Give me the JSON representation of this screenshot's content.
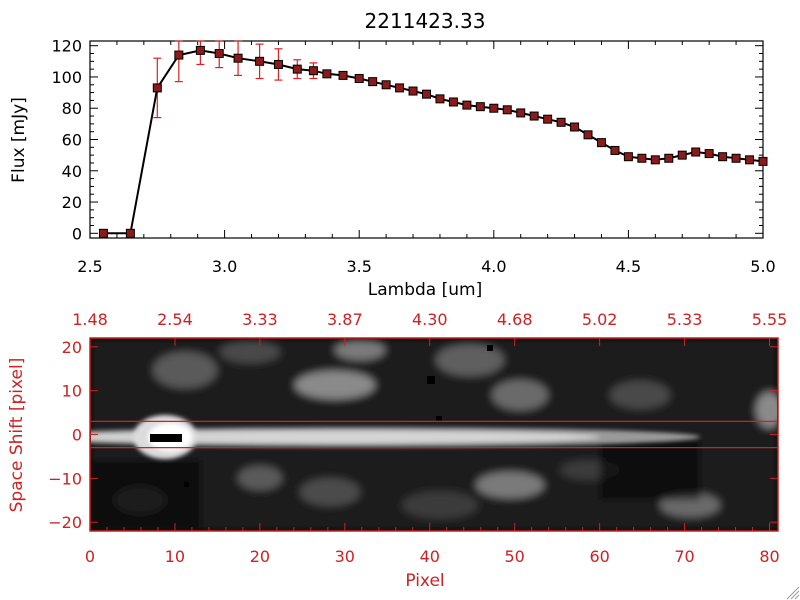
{
  "colors": {
    "axis": "#000000",
    "accent": "#cc2222",
    "errorbar": "#dd2020",
    "marker": "#8b1a1a",
    "image_bg": "#000000"
  },
  "chart_data": [
    {
      "type": "line",
      "title": "2211423.33",
      "xlabel": "Lambda [um]",
      "ylabel": "Flux [mJy]",
      "xlim": [
        2.5,
        5.0
      ],
      "ylim": [
        -3,
        123
      ],
      "xticks": [
        2.5,
        3.0,
        3.5,
        4.0,
        4.5,
        5.0
      ],
      "xtick_labels": [
        "2.5",
        "3.0",
        "3.5",
        "4.0",
        "4.5",
        "5.0"
      ],
      "yticks": [
        0,
        20,
        40,
        60,
        80,
        100,
        120
      ],
      "ytick_labels": [
        "0",
        "20",
        "40",
        "60",
        "80",
        "100",
        "120"
      ],
      "series": [
        {
          "name": "flux",
          "x": [
            2.55,
            2.65,
            2.75,
            2.83,
            2.91,
            2.98,
            3.05,
            3.13,
            3.2,
            3.27,
            3.33,
            3.38,
            3.44,
            3.5,
            3.55,
            3.6,
            3.65,
            3.7,
            3.75,
            3.8,
            3.85,
            3.9,
            3.95,
            4.0,
            4.05,
            4.1,
            4.15,
            4.2,
            4.25,
            4.3,
            4.35,
            4.4,
            4.45,
            4.5,
            4.55,
            4.6,
            4.65,
            4.7,
            4.75,
            4.8,
            4.85,
            4.9,
            4.95,
            5.0
          ],
          "y": [
            0,
            0,
            93,
            114,
            117,
            115,
            112,
            110,
            108,
            105,
            104,
            102,
            101,
            99,
            97,
            95,
            93,
            91,
            89,
            86,
            84,
            82,
            81,
            80,
            79,
            77,
            75,
            73,
            71,
            68,
            63,
            58,
            53,
            49,
            48,
            47,
            48,
            50,
            52,
            51,
            49,
            48,
            47,
            46
          ],
          "err": [
            0,
            0,
            19,
            17,
            9,
            9,
            11,
            11,
            10,
            6,
            5,
            1,
            1,
            1,
            1,
            1,
            1,
            1,
            1,
            1,
            1,
            1,
            1,
            1,
            1,
            1,
            1,
            1,
            1,
            1,
            1,
            1,
            1,
            1,
            1,
            1,
            1,
            1,
            1,
            1,
            1,
            1,
            1,
            1
          ]
        }
      ]
    },
    {
      "type": "heatmap",
      "xlabel": "Pixel",
      "ylabel": "Space Shift [pixel]",
      "xlim": [
        0,
        81
      ],
      "ylim": [
        -22,
        22
      ],
      "xticks": [
        0,
        10,
        20,
        30,
        40,
        50,
        60,
        70,
        80
      ],
      "xtick_labels": [
        "0",
        "10",
        "20",
        "30",
        "40",
        "50",
        "60",
        "70",
        "80"
      ],
      "yticks": [
        -20,
        -10,
        0,
        10,
        20
      ],
      "ytick_labels": [
        "−20",
        "−10",
        "0",
        "10",
        "20"
      ],
      "top_axis_label_positions": [
        0,
        10,
        20,
        30,
        40,
        50,
        60,
        70,
        80
      ],
      "top_axis_labels": [
        "1.48",
        "2.54",
        "3.33",
        "3.87",
        "4.30",
        "4.68",
        "5.02",
        "5.33",
        "5.55"
      ],
      "extraction_window": [
        -3,
        3
      ]
    }
  ]
}
